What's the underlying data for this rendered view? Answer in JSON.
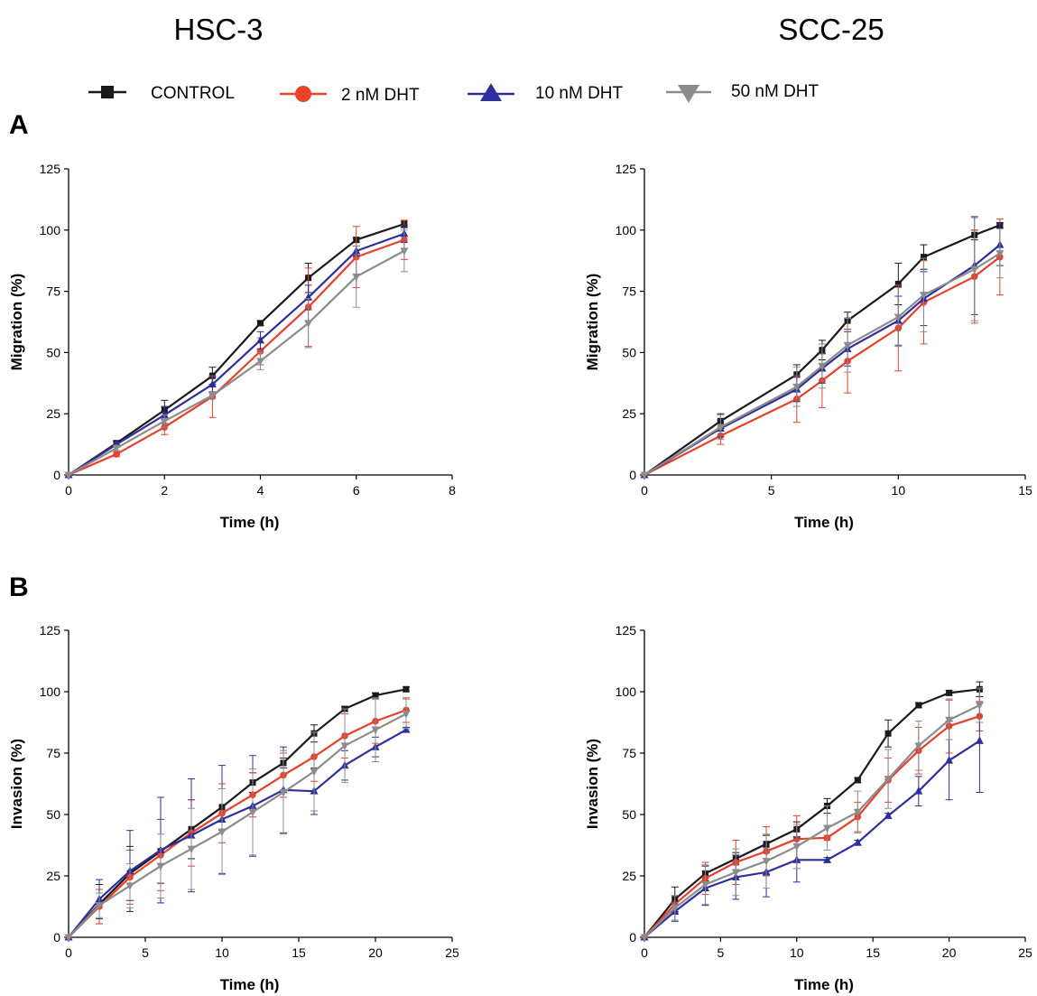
{
  "figure": {
    "column_titles": [
      "HSC-3",
      "SCC-25"
    ],
    "panel_letters": [
      "A",
      "B"
    ]
  },
  "legend": [
    {
      "label": "CONTROL",
      "color": "#1a1a1a",
      "marker": "square"
    },
    {
      "label": "2 nM DHT",
      "color": "#e8402a",
      "marker": "circle"
    },
    {
      "label": "10 nM DHT",
      "color": "#2e2f9e",
      "marker": "triangle-up"
    },
    {
      "label": "50 nM DHT",
      "color": "#8c8c8c",
      "marker": "triangle-down"
    }
  ],
  "chart_data": [
    {
      "type": "line",
      "title": "HSC-3",
      "panel": "A",
      "xlabel": "Time (h)",
      "ylabel": "Migration (%)",
      "xlim": [
        0,
        8
      ],
      "ylim": [
        0,
        125
      ],
      "xticks": [
        0,
        2,
        4,
        6,
        8
      ],
      "yticks": [
        0,
        25,
        50,
        75,
        100,
        125
      ],
      "series": [
        {
          "name": "CONTROL",
          "x": [
            0,
            1,
            2,
            3,
            4,
            5,
            6,
            7
          ],
          "y": [
            0,
            13,
            26.5,
            40.5,
            62,
            80.5,
            96,
            102.5
          ],
          "err": [
            0,
            1,
            4,
            3.5,
            1,
            6,
            1,
            1.5
          ]
        },
        {
          "name": "2 nM DHT",
          "x": [
            0,
            1,
            2,
            3,
            4,
            5,
            6,
            7
          ],
          "y": [
            0,
            8.5,
            19.5,
            32,
            50.5,
            68.5,
            89,
            96
          ],
          "err": [
            0,
            1,
            3,
            8.5,
            5.5,
            16,
            12.5,
            8
          ]
        },
        {
          "name": "10 nM DHT",
          "x": [
            0,
            1,
            2,
            3,
            4,
            5,
            6,
            7
          ],
          "y": [
            0,
            12.5,
            24.5,
            37,
            55,
            72.5,
            91.5,
            98.5
          ],
          "err": [
            0,
            1,
            3.5,
            3,
            3.5,
            5,
            2,
            3.5
          ]
        },
        {
          "name": "50 nM DHT",
          "x": [
            0,
            1,
            2,
            3,
            4,
            5,
            6,
            7
          ],
          "y": [
            0,
            11,
            22,
            32.5,
            46.5,
            62,
            81,
            91.5
          ],
          "err": [
            0,
            1,
            2.5,
            1.5,
            3.5,
            10,
            12.5,
            8.5
          ]
        }
      ]
    },
    {
      "type": "line",
      "title": "SCC-25",
      "panel": "A",
      "xlabel": "Time (h)",
      "ylabel": "Migration (%)",
      "xlim": [
        0,
        15
      ],
      "ylim": [
        0,
        125
      ],
      "xticks": [
        0,
        5,
        10,
        15
      ],
      "yticks": [
        0,
        25,
        50,
        75,
        100,
        125
      ],
      "series": [
        {
          "name": "CONTROL",
          "x": [
            0,
            3,
            6,
            7,
            8,
            10,
            11,
            13,
            14
          ],
          "y": [
            0,
            22,
            41,
            51,
            63,
            78,
            89,
            98,
            102
          ],
          "err": [
            0,
            3,
            4,
            4,
            3.5,
            8.5,
            5,
            2,
            1
          ]
        },
        {
          "name": "2 nM DHT",
          "x": [
            0,
            3,
            6,
            7,
            8,
            10,
            11,
            13,
            14
          ],
          "y": [
            0,
            16,
            31,
            38.5,
            46.5,
            60,
            70.5,
            81,
            89
          ],
          "err": [
            0,
            3.5,
            9.5,
            11,
            13,
            17.5,
            17,
            19,
            15.5
          ]
        },
        {
          "name": "10 nM DHT",
          "x": [
            0,
            3,
            6,
            7,
            8,
            10,
            11,
            13,
            14
          ],
          "y": [
            0,
            19,
            35,
            43.5,
            51.5,
            63,
            72,
            85.5,
            94
          ],
          "err": [
            0,
            3.5,
            5,
            6,
            7,
            10,
            11,
            20,
            8.5
          ]
        },
        {
          "name": "50 nM DHT",
          "x": [
            0,
            3,
            6,
            7,
            8,
            10,
            11,
            13,
            14
          ],
          "y": [
            0,
            19.5,
            36,
            44.5,
            53,
            64.5,
            73.5,
            84,
            90.5
          ],
          "err": [
            0,
            5,
            8,
            9,
            11,
            12,
            15,
            21,
            10
          ]
        }
      ]
    },
    {
      "type": "line",
      "title": "HSC-3",
      "panel": "B",
      "xlabel": "Time (h)",
      "ylabel": "Invasion (%)",
      "xlim": [
        0,
        25
      ],
      "ylim": [
        0,
        125
      ],
      "xticks": [
        0,
        5,
        10,
        15,
        20,
        25
      ],
      "yticks": [
        0,
        25,
        50,
        75,
        100,
        125
      ],
      "series": [
        {
          "name": "CONTROL",
          "x": [
            0,
            2,
            4,
            6,
            8,
            10,
            12,
            14,
            16,
            18,
            20,
            22
          ],
          "y": [
            0,
            13.5,
            26,
            35,
            44,
            53,
            63,
            71,
            83,
            93,
            98.5,
            101
          ],
          "err": [
            0,
            8,
            11,
            13,
            12,
            9.5,
            4,
            2,
            3.5,
            1,
            1,
            1
          ]
        },
        {
          "name": "2 nM DHT",
          "x": [
            0,
            2,
            4,
            6,
            8,
            10,
            12,
            14,
            16,
            18,
            20,
            22
          ],
          "y": [
            0,
            12.5,
            24.5,
            33.5,
            42.5,
            50.5,
            58,
            66,
            73.5,
            82,
            88,
            92.5
          ],
          "err": [
            0,
            7,
            11,
            14.5,
            13.5,
            12,
            9,
            9,
            10,
            9,
            9,
            5
          ]
        },
        {
          "name": "10 nM DHT",
          "x": [
            0,
            2,
            4,
            6,
            8,
            10,
            12,
            14,
            16,
            18,
            20,
            22
          ],
          "y": [
            0,
            15.5,
            27,
            35.5,
            41.5,
            48,
            53.5,
            60,
            59.5,
            70,
            77.5,
            84.5
          ],
          "err": [
            0,
            8,
            16.5,
            21.5,
            23,
            22,
            20.5,
            17.5,
            9.5,
            6,
            4,
            1
          ]
        },
        {
          "name": "50 nM DHT",
          "x": [
            0,
            2,
            4,
            6,
            8,
            10,
            12,
            14,
            16,
            18,
            20,
            22
          ],
          "y": [
            0,
            13,
            21,
            29,
            36,
            43,
            51,
            59,
            67.5,
            78,
            84.5,
            91
          ],
          "err": [
            0,
            5,
            9,
            13,
            16.5,
            17.5,
            17.5,
            17,
            16,
            15,
            13,
            6
          ]
        }
      ]
    },
    {
      "type": "line",
      "title": "SCC-25",
      "panel": "B",
      "xlabel": "Time (h)",
      "ylabel": "Invasion (%)",
      "xlim": [
        0,
        25
      ],
      "ylim": [
        0,
        125
      ],
      "xticks": [
        0,
        5,
        10,
        15,
        20,
        25
      ],
      "yticks": [
        0,
        25,
        50,
        75,
        100,
        125
      ],
      "series": [
        {
          "name": "CONTROL",
          "x": [
            0,
            2,
            4,
            6,
            8,
            10,
            12,
            14,
            16,
            18,
            20,
            22
          ],
          "y": [
            0,
            15.5,
            26,
            32,
            38,
            44,
            53.5,
            64,
            83,
            94.5,
            99.5,
            101
          ],
          "err": [
            0,
            5,
            3,
            2.5,
            3.5,
            3,
            3,
            1,
            5.5,
            1,
            1,
            3
          ]
        },
        {
          "name": "2 nM DHT",
          "x": [
            0,
            2,
            4,
            6,
            8,
            10,
            12,
            14,
            16,
            18,
            20,
            22
          ],
          "y": [
            0,
            13.5,
            24,
            30.5,
            35,
            40,
            40.5,
            49,
            64,
            76,
            86,
            90
          ],
          "err": [
            0,
            3.5,
            6.5,
            9,
            10,
            9.5,
            1,
            6,
            9,
            9.5,
            11,
            6
          ]
        },
        {
          "name": "10 nM DHT",
          "x": [
            0,
            2,
            4,
            6,
            8,
            10,
            12,
            14,
            16,
            18,
            20,
            22
          ],
          "y": [
            0,
            10.5,
            20,
            24.5,
            26.5,
            31.5,
            31.5,
            38.5,
            49.5,
            59.5,
            72,
            80
          ],
          "err": [
            0,
            4,
            7,
            9,
            10,
            9,
            1,
            1,
            1,
            6,
            16,
            21
          ]
        },
        {
          "name": "50 nM DHT",
          "x": [
            0,
            2,
            4,
            6,
            8,
            10,
            12,
            14,
            16,
            18,
            20,
            22
          ],
          "y": [
            0,
            12,
            21.5,
            26.5,
            31,
            37,
            44.5,
            51,
            64.5,
            78,
            88.5,
            94.5
          ],
          "err": [
            0,
            5,
            8,
            9.5,
            11,
            9,
            9,
            8.5,
            12,
            10,
            8,
            7
          ]
        }
      ]
    }
  ]
}
